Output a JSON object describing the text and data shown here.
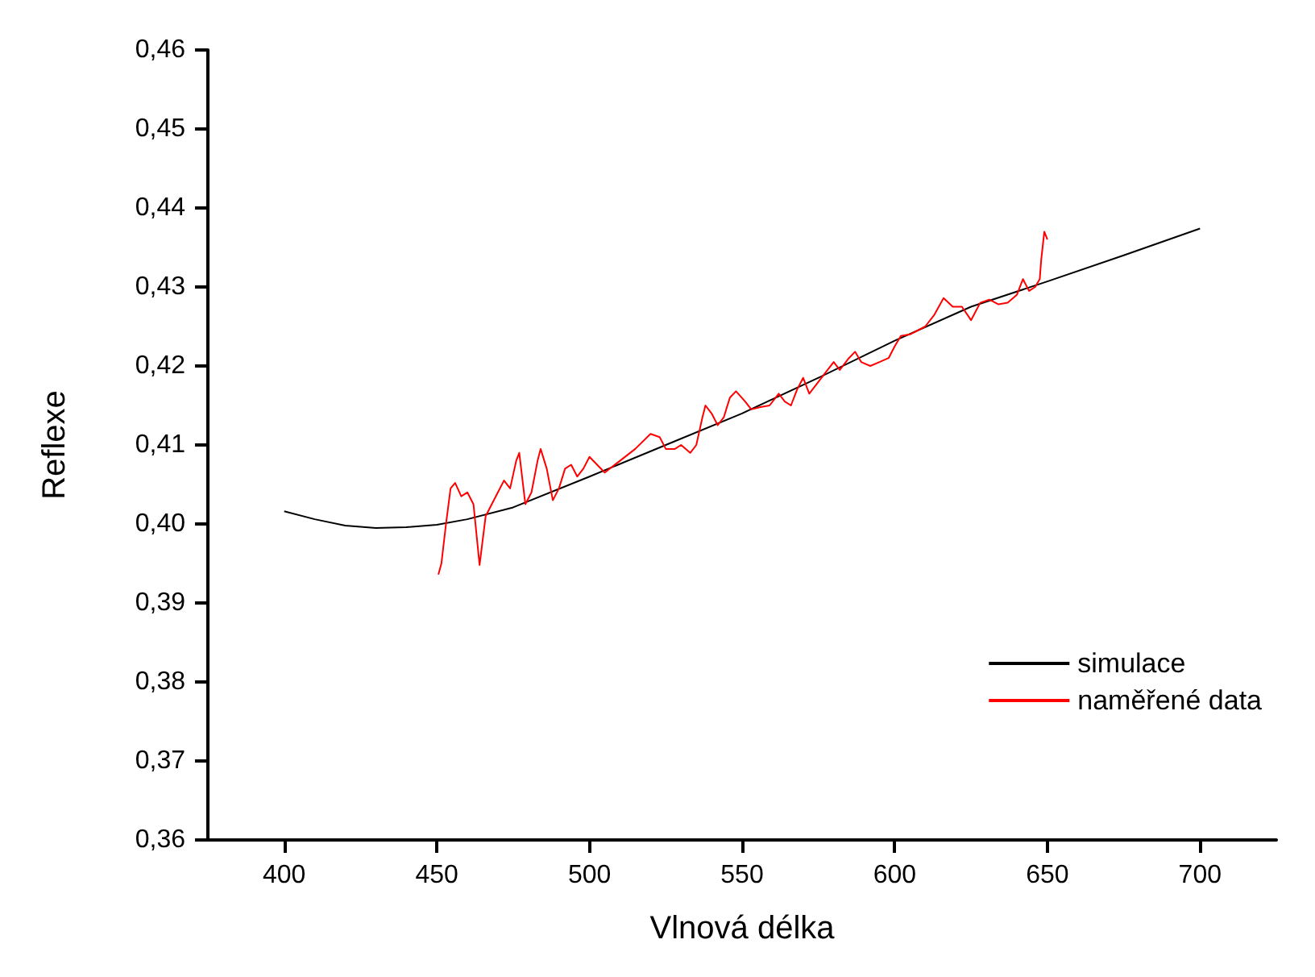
{
  "chart_data": {
    "type": "line",
    "xlabel": "Vlnová délka",
    "ylabel": "Reflexe",
    "xlim": [
      375,
      725
    ],
    "xticks": [
      400,
      450,
      500,
      550,
      600,
      650,
      700
    ],
    "ylim": [
      0.36,
      0.46
    ],
    "yticks": [
      {
        "value": 0.36,
        "label": "0,36"
      },
      {
        "value": 0.37,
        "label": "0,37"
      },
      {
        "value": 0.38,
        "label": "0,38"
      },
      {
        "value": 0.39,
        "label": "0,39"
      },
      {
        "value": 0.4,
        "label": "0,40"
      },
      {
        "value": 0.41,
        "label": "0,41"
      },
      {
        "value": 0.42,
        "label": "0,42"
      },
      {
        "value": 0.43,
        "label": "0,43"
      },
      {
        "value": 0.44,
        "label": "0,44"
      },
      {
        "value": 0.45,
        "label": "0,45"
      },
      {
        "value": 0.46,
        "label": "0,46"
      }
    ],
    "grid": false,
    "legend": "right",
    "marker": "none",
    "line_style": "solid",
    "series": [
      {
        "name": "simulace",
        "color": "#000000",
        "x": [
          400,
          410,
          420,
          430,
          440,
          450,
          460,
          475,
          500,
          525,
          550,
          575,
          600,
          625,
          650,
          675,
          700
        ],
        "values": [
          0.4016,
          0.4006,
          0.3998,
          0.3995,
          0.3996,
          0.3999,
          0.4006,
          0.4021,
          0.406,
          0.41,
          0.414,
          0.4185,
          0.4232,
          0.4275,
          0.4307,
          0.434,
          0.4374
        ]
      },
      {
        "name": "naměřené data",
        "color": "#ff0000",
        "x": [
          450.5,
          451.5,
          453,
          454.5,
          456,
          458,
          460,
          462,
          464,
          466,
          468,
          470,
          472,
          474,
          476,
          477,
          479,
          481,
          483,
          484,
          486,
          488,
          490,
          492,
          494,
          496,
          498,
          500,
          505,
          510,
          515,
          520,
          523,
          525,
          528,
          530,
          533,
          535,
          537,
          538,
          540,
          542,
          544,
          546,
          548,
          551,
          553,
          556,
          559,
          562,
          564,
          566,
          568,
          570,
          572,
          575,
          578,
          580,
          582,
          585,
          587,
          589,
          592,
          595,
          598,
          600,
          602,
          605,
          610,
          613,
          616,
          619,
          622,
          625,
          628,
          631,
          634,
          637,
          640,
          642,
          644,
          646,
          647.5,
          648,
          649,
          650
        ],
        "values": [
          0.3936,
          0.395,
          0.4,
          0.4045,
          0.4052,
          0.4035,
          0.404,
          0.4025,
          0.3948,
          0.401,
          0.4025,
          0.404,
          0.4055,
          0.4045,
          0.408,
          0.409,
          0.4025,
          0.404,
          0.408,
          0.4095,
          0.407,
          0.403,
          0.4045,
          0.407,
          0.4075,
          0.406,
          0.407,
          0.4085,
          0.4065,
          0.408,
          0.4095,
          0.4114,
          0.411,
          0.4095,
          0.4095,
          0.41,
          0.409,
          0.41,
          0.4135,
          0.415,
          0.414,
          0.4125,
          0.4135,
          0.416,
          0.4168,
          0.4155,
          0.4145,
          0.4148,
          0.415,
          0.4165,
          0.4155,
          0.415,
          0.417,
          0.4185,
          0.4165,
          0.418,
          0.4195,
          0.4205,
          0.4195,
          0.421,
          0.4218,
          0.4205,
          0.42,
          0.4205,
          0.421,
          0.4225,
          0.4238,
          0.424,
          0.425,
          0.4265,
          0.4286,
          0.4275,
          0.4275,
          0.4258,
          0.428,
          0.4284,
          0.4278,
          0.428,
          0.429,
          0.431,
          0.4295,
          0.43,
          0.431,
          0.4335,
          0.437,
          0.436
        ]
      }
    ]
  }
}
